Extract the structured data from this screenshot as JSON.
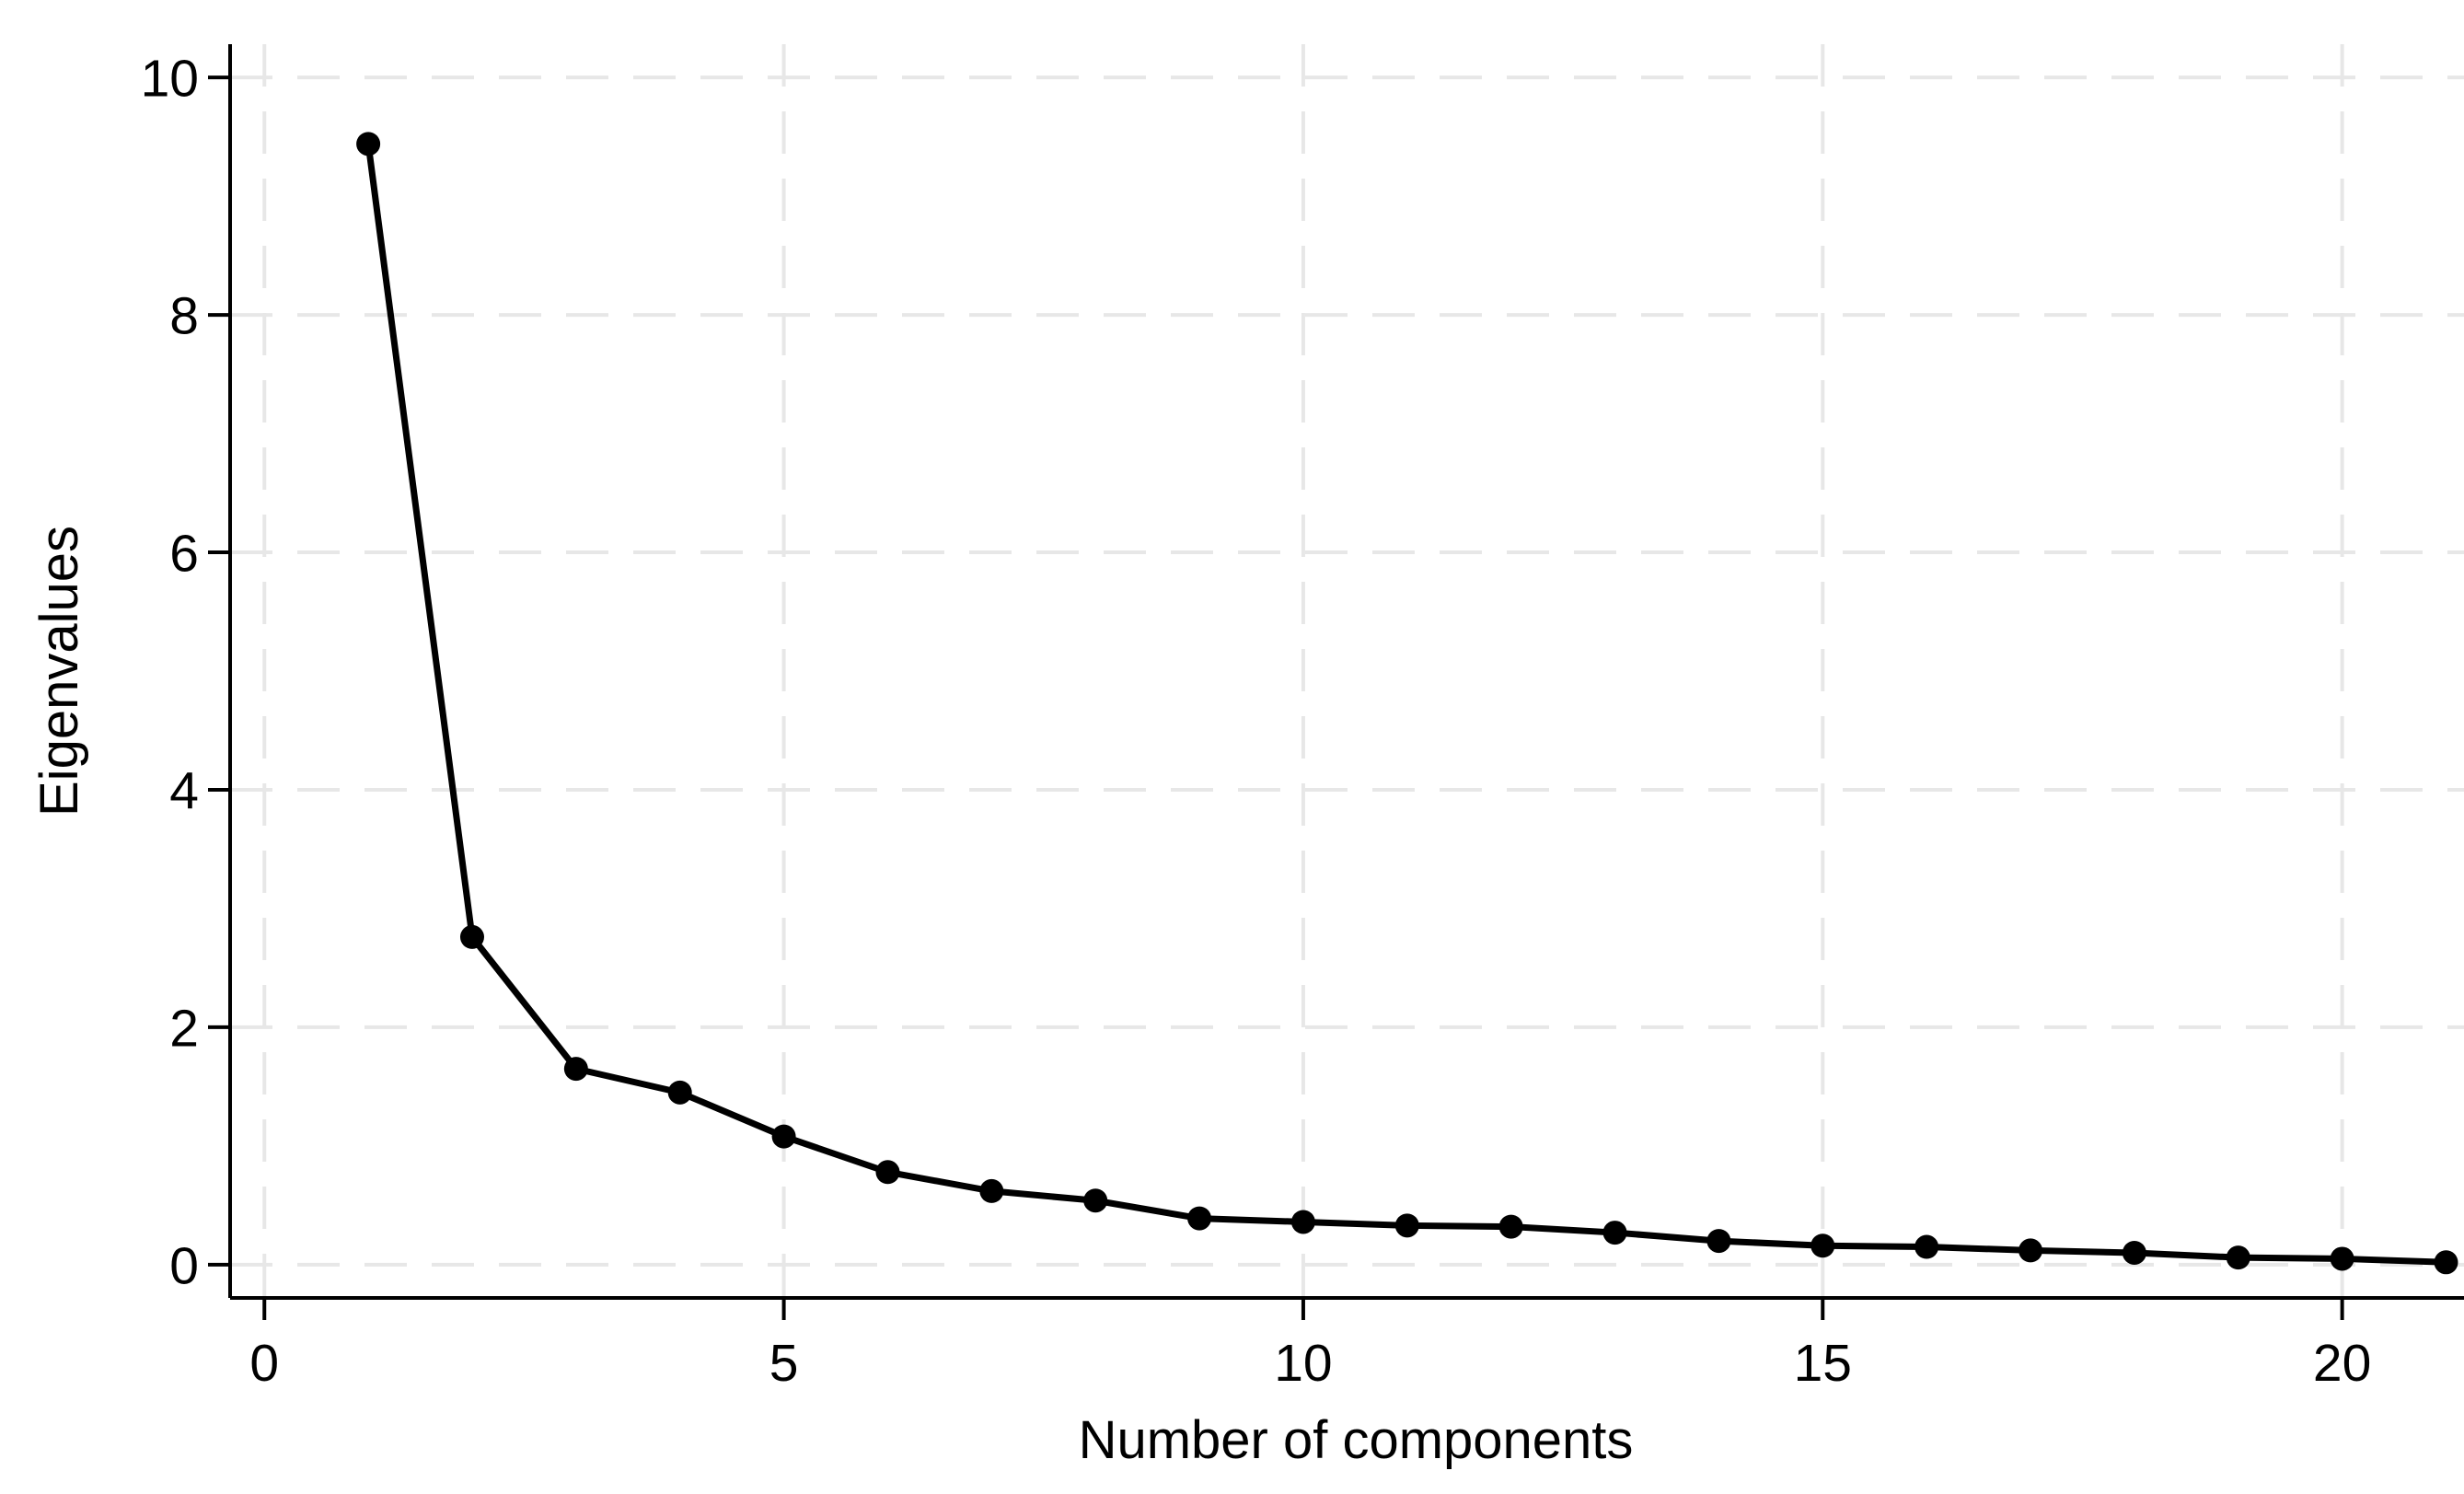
{
  "figure": {
    "background_color": "#ffffff",
    "title": ""
  },
  "chart_data": {
    "type": "line",
    "title": "",
    "xlabel": "Number of components",
    "ylabel": "Eigenvalues",
    "series": [
      {
        "name": "Eigenvalues",
        "x": [
          1,
          2,
          3,
          4,
          5,
          6,
          7,
          8,
          9,
          10,
          11,
          12,
          13,
          14,
          15,
          16,
          17,
          18,
          19,
          20,
          21
        ],
        "y": [
          9.44,
          2.76,
          1.65,
          1.45,
          1.08,
          0.78,
          0.62,
          0.54,
          0.39,
          0.36,
          0.33,
          0.32,
          0.27,
          0.2,
          0.16,
          0.15,
          0.12,
          0.1,
          0.06,
          0.05,
          0.02
        ]
      }
    ],
    "x_ticks": [
      0,
      5,
      10,
      15,
      20
    ],
    "y_ticks": [
      0,
      2,
      4,
      6,
      8,
      10
    ],
    "xlim": [
      -0.33,
      21.35
    ],
    "ylim": [
      -0.28,
      10.28
    ],
    "grid": true,
    "grid_style": "dashed",
    "legend_position": "none",
    "marker": "circle",
    "colors": {
      "line": "#000000",
      "marker": "#000000",
      "grid": "#e7e7e7",
      "axis": "#000000",
      "text": "#000000",
      "background": "#ffffff"
    }
  }
}
